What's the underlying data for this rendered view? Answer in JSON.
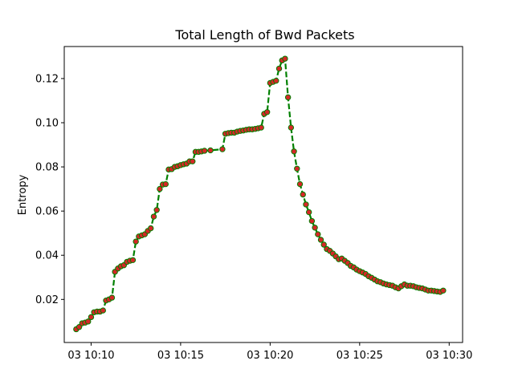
{
  "chart_data": {
    "type": "line",
    "title": "Total Length of Bwd Packets",
    "xlabel": "",
    "ylabel": "Entropy",
    "x_axis_kind": "time",
    "xlim": [
      "03 10:08:30",
      "03 10:30:45"
    ],
    "ylim": [
      0.0005,
      0.1345
    ],
    "x_ticks": [
      "03 10:10",
      "03 10:15",
      "03 10:20",
      "03 10:25",
      "03 10:30"
    ],
    "y_ticks": [
      0.02,
      0.04,
      0.06,
      0.08,
      0.1,
      0.12
    ],
    "grid": false,
    "legend": null,
    "line_color": "#008000",
    "line_style": "dashed",
    "marker_color": "#d62728",
    "marker_edge_color": "#008000",
    "series": [
      {
        "x": [
          "03 10:09:10",
          "03 10:09:20",
          "03 10:09:30",
          "03 10:09:40",
          "03 10:09:50",
          "03 10:10:00",
          "03 10:10:10",
          "03 10:10:20",
          "03 10:10:30",
          "03 10:10:40",
          "03 10:10:50",
          "03 10:11:00",
          "03 10:11:10",
          "03 10:11:20",
          "03 10:11:30",
          "03 10:11:40",
          "03 10:11:50",
          "03 10:12:00",
          "03 10:12:10",
          "03 10:12:20",
          "03 10:12:30",
          "03 10:12:40",
          "03 10:12:50",
          "03 10:13:00",
          "03 10:13:10",
          "03 10:13:20",
          "03 10:13:30",
          "03 10:13:40",
          "03 10:13:50",
          "03 10:14:00",
          "03 10:14:10",
          "03 10:14:20",
          "03 10:14:30",
          "03 10:14:40",
          "03 10:14:50",
          "03 10:15:00",
          "03 10:15:10",
          "03 10:15:20",
          "03 10:15:30",
          "03 10:15:40",
          "03 10:15:50",
          "03 10:16:00",
          "03 10:16:10",
          "03 10:16:20",
          "03 10:16:40",
          "03 10:17:20",
          "03 10:17:30",
          "03 10:17:40",
          "03 10:17:50",
          "03 10:18:00",
          "03 10:18:10",
          "03 10:18:20",
          "03 10:18:30",
          "03 10:18:40",
          "03 10:18:50",
          "03 10:19:00",
          "03 10:19:10",
          "03 10:19:20",
          "03 10:19:30",
          "03 10:19:40",
          "03 10:19:50",
          "03 10:20:00",
          "03 10:20:10",
          "03 10:20:20",
          "03 10:20:30",
          "03 10:20:40",
          "03 10:20:50",
          "03 10:21:00",
          "03 10:21:10",
          "03 10:21:20",
          "03 10:21:30",
          "03 10:21:40",
          "03 10:21:50",
          "03 10:22:00",
          "03 10:22:10",
          "03 10:22:20",
          "03 10:22:30",
          "03 10:22:40",
          "03 10:22:50",
          "03 10:23:00",
          "03 10:23:10",
          "03 10:23:20",
          "03 10:23:30",
          "03 10:23:40",
          "03 10:23:50",
          "03 10:24:00",
          "03 10:24:10",
          "03 10:24:20",
          "03 10:24:30",
          "03 10:24:40",
          "03 10:24:50",
          "03 10:25:00",
          "03 10:25:10",
          "03 10:25:20",
          "03 10:25:30",
          "03 10:25:40",
          "03 10:25:50",
          "03 10:26:00",
          "03 10:26:10",
          "03 10:26:20",
          "03 10:26:30",
          "03 10:26:40",
          "03 10:26:50",
          "03 10:27:00",
          "03 10:27:10",
          "03 10:27:20",
          "03 10:27:30",
          "03 10:27:40",
          "03 10:27:50",
          "03 10:28:00",
          "03 10:28:10",
          "03 10:28:20",
          "03 10:28:30",
          "03 10:28:40",
          "03 10:28:50",
          "03 10:29:00",
          "03 10:29:10",
          "03 10:29:20",
          "03 10:29:30",
          "03 10:29:40"
        ],
        "y": [
          0.0065,
          0.0075,
          0.0092,
          0.0095,
          0.01,
          0.012,
          0.0142,
          0.0145,
          0.0145,
          0.015,
          0.0195,
          0.02,
          0.0208,
          0.0325,
          0.034,
          0.035,
          0.0355,
          0.037,
          0.0375,
          0.0378,
          0.0462,
          0.0485,
          0.049,
          0.0495,
          0.051,
          0.0522,
          0.0575,
          0.0605,
          0.07,
          0.072,
          0.0722,
          0.0788,
          0.079,
          0.08,
          0.0803,
          0.0808,
          0.0812,
          0.0815,
          0.0825,
          0.0825,
          0.0868,
          0.0868,
          0.087,
          0.0873,
          0.0875,
          0.088,
          0.095,
          0.0953,
          0.0955,
          0.0955,
          0.096,
          0.0963,
          0.0965,
          0.0968,
          0.097,
          0.097,
          0.0972,
          0.0975,
          0.0978,
          0.104,
          0.1048,
          0.118,
          0.1185,
          0.119,
          0.1245,
          0.1282,
          0.129,
          0.1115,
          0.0978,
          0.087,
          0.0792,
          0.0722,
          0.0675,
          0.063,
          0.0595,
          0.0555,
          0.0525,
          0.0495,
          0.047,
          0.0448,
          0.0428,
          0.042,
          0.0408,
          0.0395,
          0.0382,
          0.0385,
          0.0375,
          0.0365,
          0.0352,
          0.0345,
          0.0335,
          0.0328,
          0.0322,
          0.0315,
          0.0305,
          0.0298,
          0.029,
          0.0282,
          0.0278,
          0.0272,
          0.0268,
          0.0265,
          0.0262,
          0.0255,
          0.025,
          0.026,
          0.0268,
          0.0262,
          0.0262,
          0.026,
          0.0255,
          0.0252,
          0.025,
          0.0245,
          0.024,
          0.024,
          0.0238,
          0.0236,
          0.0234,
          0.024
        ]
      }
    ]
  }
}
